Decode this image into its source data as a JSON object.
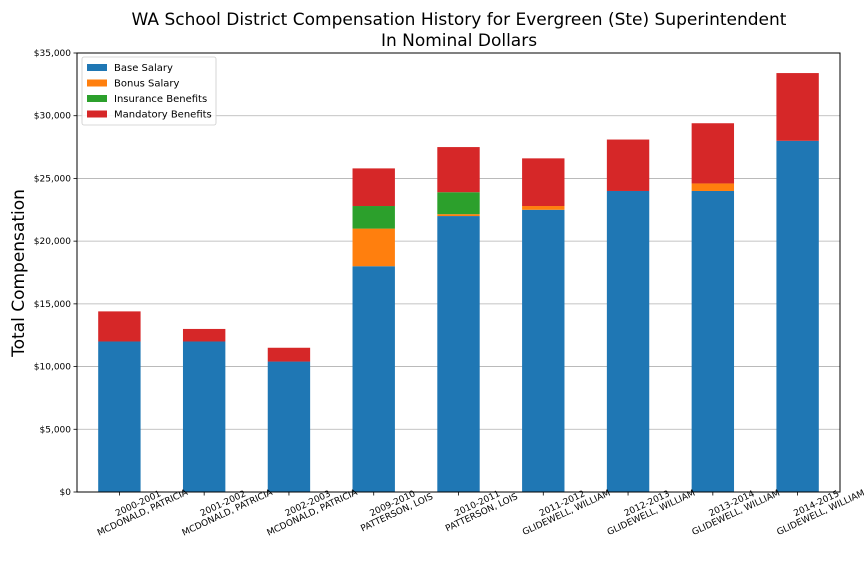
{
  "chart_data": {
    "type": "bar",
    "stacked": true,
    "title_line1": "WA School District Compensation History for Evergreen (Ste) Superintendent",
    "title_line2": "In Nominal Dollars",
    "ylabel": "Total Compensation",
    "xlabel": "",
    "ylim": [
      0,
      35000
    ],
    "yticks": [
      "$0",
      "$5,000",
      "$10,000",
      "$15,000",
      "$20,000",
      "$25,000",
      "$30,000",
      "$35,000"
    ],
    "ytick_values": [
      0,
      5000,
      10000,
      15000,
      20000,
      25000,
      30000,
      35000
    ],
    "grid": "horizontal",
    "legend_position": "top-left",
    "categories": [
      [
        "2000-2001",
        "MCDONALD, PATRICIA"
      ],
      [
        "2001-2002",
        "MCDONALD, PATRICIA"
      ],
      [
        "2002-2003",
        "MCDONALD, PATRICIA"
      ],
      [
        "2009-2010",
        "PATTERSON, LOIS"
      ],
      [
        "2010-2011",
        "PATTERSON, LOIS"
      ],
      [
        "2011-2012",
        "GLIDEWELL, WILLIAM"
      ],
      [
        "2012-2013",
        "GLIDEWELL, WILLIAM"
      ],
      [
        "2013-2014",
        "GLIDEWELL, WILLIAM"
      ],
      [
        "2014-2015",
        "GLIDEWELL, WILLIAM"
      ]
    ],
    "series": [
      {
        "name": "Base Salary",
        "color": "#1f77b4",
        "values": [
          12000,
          12000,
          10400,
          18000,
          22000,
          22500,
          24000,
          24000,
          28000
        ]
      },
      {
        "name": "Bonus Salary",
        "color": "#ff7f0e",
        "values": [
          0,
          0,
          0,
          3000,
          150,
          300,
          0,
          600,
          0
        ]
      },
      {
        "name": "Insurance Benefits",
        "color": "#2ca02c",
        "values": [
          0,
          0,
          0,
          1800,
          1750,
          0,
          0,
          0,
          0
        ]
      },
      {
        "name": "Mandatory Benefits",
        "color": "#d62728",
        "values": [
          2400,
          1000,
          1100,
          3000,
          3600,
          3800,
          4100,
          4800,
          5400
        ]
      }
    ]
  }
}
